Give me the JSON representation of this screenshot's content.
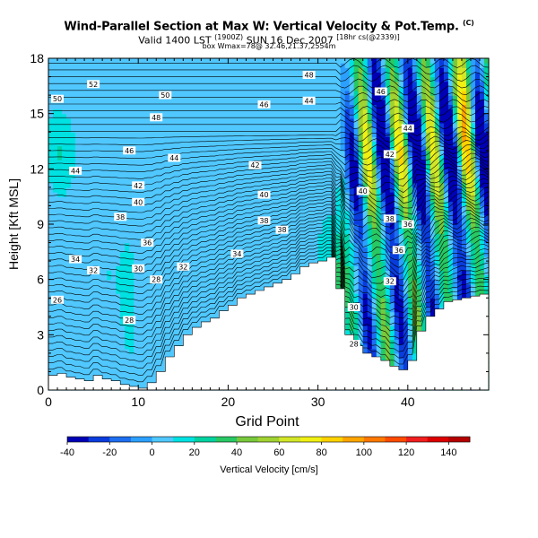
{
  "chart_data": {
    "type": "heatmap",
    "title": "Wind-Parallel Section at Max W: Vertical Velocity & Pot.Temp.",
    "title_mark": "(C)",
    "subtitle_prefix": "Valid 1400 LST",
    "subtitle_small_1": "(1900Z)",
    "subtitle_main": "SUN 16 Dec 2007",
    "subtitle_small_2": "[18hr cs(@2339)]",
    "subtitle_line3": "box Wmax=78@ 32.46,21.37,2554m",
    "xlabel": "Grid Point",
    "ylabel": "Height [Kft MSL]",
    "xlim": [
      0,
      49
    ],
    "ylim": [
      0,
      18
    ],
    "xticks": [
      0,
      10,
      20,
      30,
      40
    ],
    "yticks": [
      0,
      3,
      6,
      9,
      12,
      15,
      18
    ],
    "grid": false,
    "colorbar": {
      "label": "Vertical Velocity [cm/s]",
      "min": -40,
      "max": 150,
      "step": 10,
      "ticks": [
        -40,
        -20,
        0,
        20,
        40,
        60,
        80,
        100,
        120,
        140
      ],
      "colors": [
        "#0000b4",
        "#0a3cdc",
        "#1e6ef0",
        "#2ca0ff",
        "#50c8ff",
        "#00e1e1",
        "#00d2a0",
        "#28c864",
        "#78c83c",
        "#a0d232",
        "#d2e628",
        "#f0f014",
        "#ffd200",
        "#ffa500",
        "#ff7800",
        "#ff4b00",
        "#f01e1e",
        "#dc0000",
        "#b40000"
      ]
    },
    "series": [
      {
        "name": "Pot.Temp. contour labels",
        "labels": [
          {
            "x": 5,
            "y": 16.6,
            "value": "52"
          },
          {
            "x": 1,
            "y": 15.8,
            "value": "50"
          },
          {
            "x": 13,
            "y": 16.0,
            "value": "50"
          },
          {
            "x": 12,
            "y": 14.8,
            "value": "48"
          },
          {
            "x": 24,
            "y": 15.5,
            "value": "46"
          },
          {
            "x": 29,
            "y": 15.7,
            "value": "44"
          },
          {
            "x": 29,
            "y": 17.1,
            "value": "48"
          },
          {
            "x": 37,
            "y": 16.2,
            "value": "46"
          },
          {
            "x": 40,
            "y": 14.2,
            "value": "44"
          },
          {
            "x": 38,
            "y": 12.8,
            "value": "42"
          },
          {
            "x": 9,
            "y": 13.0,
            "value": "46"
          },
          {
            "x": 14,
            "y": 12.6,
            "value": "44"
          },
          {
            "x": 3,
            "y": 11.9,
            "value": "44"
          },
          {
            "x": 23,
            "y": 12.2,
            "value": "42"
          },
          {
            "x": 10,
            "y": 11.1,
            "value": "42"
          },
          {
            "x": 10,
            "y": 10.2,
            "value": "40"
          },
          {
            "x": 24,
            "y": 10.6,
            "value": "40"
          },
          {
            "x": 35,
            "y": 10.8,
            "value": "40"
          },
          {
            "x": 8,
            "y": 9.4,
            "value": "38"
          },
          {
            "x": 24,
            "y": 9.2,
            "value": "38"
          },
          {
            "x": 26,
            "y": 8.7,
            "value": "38"
          },
          {
            "x": 38,
            "y": 9.3,
            "value": "38"
          },
          {
            "x": 40,
            "y": 9.0,
            "value": "36"
          },
          {
            "x": 11,
            "y": 8.0,
            "value": "36"
          },
          {
            "x": 21,
            "y": 7.4,
            "value": "34"
          },
          {
            "x": 39,
            "y": 7.6,
            "value": "36"
          },
          {
            "x": 3,
            "y": 7.1,
            "value": "34"
          },
          {
            "x": 5,
            "y": 6.5,
            "value": "32"
          },
          {
            "x": 10,
            "y": 6.6,
            "value": "30"
          },
          {
            "x": 15,
            "y": 6.7,
            "value": "32"
          },
          {
            "x": 12,
            "y": 6.0,
            "value": "28"
          },
          {
            "x": 38,
            "y": 5.9,
            "value": "32"
          },
          {
            "x": 9,
            "y": 3.8,
            "value": "28"
          },
          {
            "x": 1,
            "y": 4.9,
            "value": "26"
          },
          {
            "x": 34,
            "y": 4.5,
            "value": "30"
          },
          {
            "x": 34,
            "y": 2.5,
            "value": "28"
          }
        ]
      }
    ],
    "terrain_tops_kft": [
      0.8,
      0.9,
      0.7,
      0.6,
      0.5,
      0.8,
      0.6,
      0.5,
      0.3,
      0.2,
      0.1,
      0.4,
      1.0,
      1.8,
      2.4,
      3.0,
      3.4,
      3.7,
      3.9,
      4.3,
      4.6,
      5.0,
      5.2,
      5.4,
      5.6,
      5.8,
      6.0,
      6.3,
      6.7,
      6.9,
      7.0,
      7.2,
      5.5,
      3.0,
      2.4,
      2.0,
      1.8,
      1.6,
      1.3,
      1.1,
      1.6,
      3.2,
      4.0,
      4.4,
      4.8,
      4.9,
      5.0,
      5.1,
      5.2,
      5.2
    ]
  }
}
